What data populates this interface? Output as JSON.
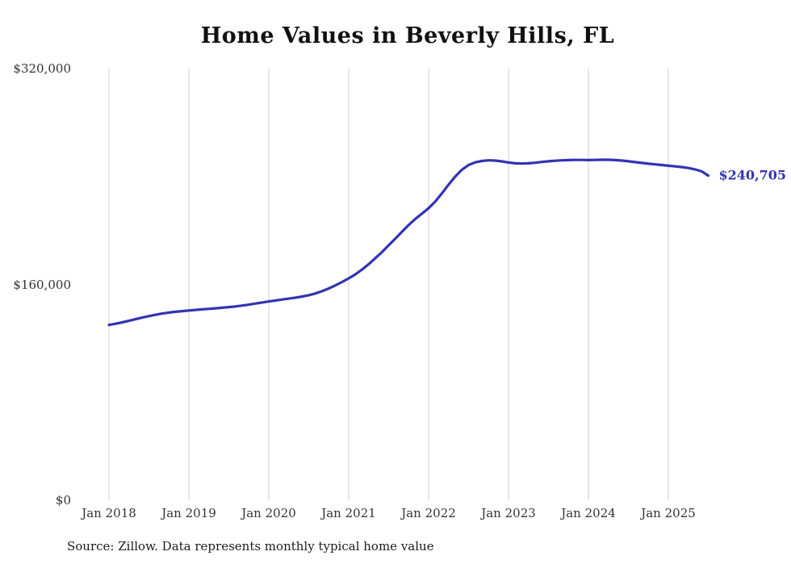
{
  "chart_data": {
    "type": "line",
    "title": "Home Values in Beverly Hills, FL",
    "xlabel": "",
    "ylabel": "",
    "ylim": [
      0,
      320000
    ],
    "grid": "vertical-only",
    "legend": "none",
    "x_start": "Jan 2018",
    "x_end": "Jul 2025",
    "x_tick_labels": [
      "Jan 2018",
      "Jan 2019",
      "Jan 2020",
      "Jan 2021",
      "Jan 2022",
      "Jan 2023",
      "Jan 2024",
      "Jan 2025"
    ],
    "y_ticks": [
      {
        "value": 0,
        "label": "$0"
      },
      {
        "value": 160000,
        "label": "$160,000"
      },
      {
        "value": 320000,
        "label": "$320,000"
      }
    ],
    "end_label": "$240,705",
    "series": [
      {
        "name": "Monthly typical home value",
        "color": "#3333b2",
        "monthly_values": [
          130000,
          130900,
          131900,
          133000,
          134200,
          135400,
          136500,
          137500,
          138400,
          139100,
          139700,
          140200,
          140700,
          141100,
          141500,
          141900,
          142300,
          142700,
          143200,
          143700,
          144300,
          145000,
          145800,
          146600,
          147400,
          148100,
          148800,
          149500,
          150200,
          151000,
          152000,
          153300,
          155000,
          157000,
          159300,
          161800,
          164500,
          167500,
          171000,
          175000,
          179500,
          184000,
          189000,
          194000,
          199000,
          204000,
          208500,
          212500,
          216500,
          221500,
          227500,
          234000,
          240000,
          245000,
          248500,
          250500,
          251500,
          252000,
          251800,
          251200,
          250400,
          249800,
          249600,
          249800,
          250200,
          250800,
          251300,
          251700,
          252000,
          252200,
          252300,
          252300,
          252200,
          252300,
          252400,
          252400,
          252200,
          251800,
          251300,
          250700,
          250100,
          249500,
          249000,
          248500,
          248000,
          247500,
          247000,
          246300,
          245300,
          243800,
          240705
        ]
      }
    ]
  },
  "source_note": "Source: Zillow. Data represents monthly typical home value"
}
